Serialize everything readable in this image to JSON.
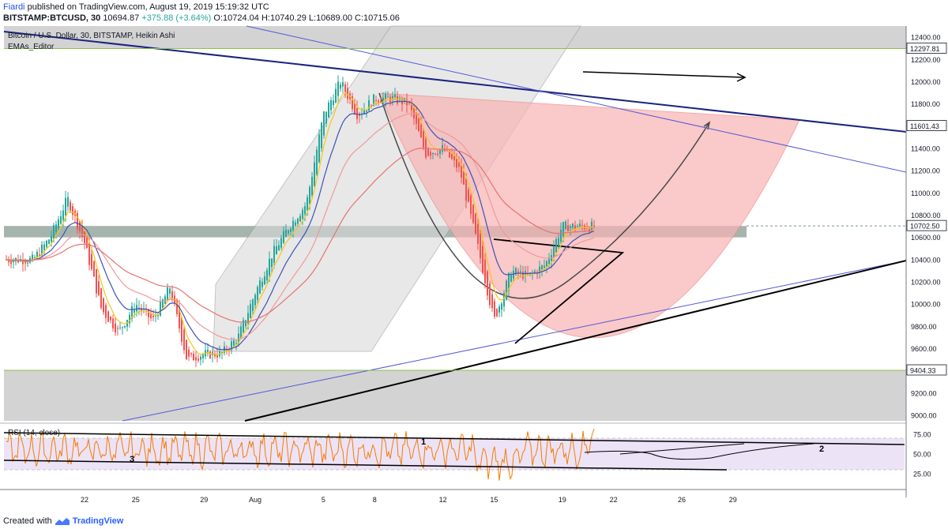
{
  "header": {
    "publisher": "Fiardi",
    "published_text": "published on TradingView.com, August 19, 2019 15:19:32 UTC",
    "symbol": "BITSTAMP:BTCUSD, 30",
    "last": "10694.87",
    "change": "+375.88 (+3.64%)",
    "ohlc": "O:10724.04  H:10740.29  L:10689.00  C:10715.06"
  },
  "chart_title": "Bitcoin / U.S. Dollar, 30, BITSTAMP, Heikin Ashi",
  "indicator_label": "EMAs_Editor",
  "rsi_label": "RSI (14, close)",
  "footer": {
    "created_with": "Created with",
    "brand": "TradingView"
  },
  "chart_data": [
    {
      "type": "candlestick",
      "title": "Bitcoin / U.S. Dollar, 30, BITSTAMP, Heikin Ashi",
      "x_tick_labels": [
        "22",
        "25",
        "29",
        "Aug",
        "5",
        "8",
        "12",
        "15",
        "19",
        "22",
        "26",
        "29"
      ],
      "ylim": [
        8950,
        12500
      ],
      "y_tick_labels": [
        9000,
        9200,
        9400,
        9600,
        9800,
        10000,
        10200,
        10400,
        10600,
        10800,
        11000,
        11200,
        11400,
        11600,
        11800,
        12000,
        12200,
        12400
      ],
      "price_labels": [
        "12297.81",
        "11601.43",
        "10702.50",
        "9404.33"
      ],
      "price_path": [
        {
          "x": "Jul 19",
          "y": 10400
        },
        {
          "x": "Jul 20",
          "y": 10600
        },
        {
          "x": "Jul 21",
          "y": 10950
        },
        {
          "x": "Jul 22",
          "y": 10550
        },
        {
          "x": "Jul 23",
          "y": 9950
        },
        {
          "x": "Jul 24",
          "y": 9750
        },
        {
          "x": "Jul 25",
          "y": 10000
        },
        {
          "x": "Jul 26",
          "y": 9850
        },
        {
          "x": "Jul 27",
          "y": 10150
        },
        {
          "x": "Jul 28",
          "y": 9500
        },
        {
          "x": "Jul 29",
          "y": 9550
        },
        {
          "x": "Jul 30",
          "y": 9550
        },
        {
          "x": "Jul 31",
          "y": 9700
        },
        {
          "x": "Aug 1",
          "y": 10100
        },
        {
          "x": "Aug 2",
          "y": 10450
        },
        {
          "x": "Aug 3",
          "y": 10700
        },
        {
          "x": "Aug 4",
          "y": 10900
        },
        {
          "x": "Aug 5",
          "y": 11700
        },
        {
          "x": "Aug 6",
          "y": 12000
        },
        {
          "x": "Aug 7",
          "y": 11700
        },
        {
          "x": "Aug 8",
          "y": 11850
        },
        {
          "x": "Aug 9",
          "y": 11850
        },
        {
          "x": "Aug 10",
          "y": 11800
        },
        {
          "x": "Aug 11",
          "y": 11350
        },
        {
          "x": "Aug 12",
          "y": 11400
        },
        {
          "x": "Aug 13",
          "y": 11200
        },
        {
          "x": "Aug 14",
          "y": 10550
        },
        {
          "x": "Aug 15",
          "y": 9850
        },
        {
          "x": "Aug 16",
          "y": 10300
        },
        {
          "x": "Aug 17",
          "y": 10250
        },
        {
          "x": "Aug 18",
          "y": 10350
        },
        {
          "x": "Aug 19",
          "y": 10700
        }
      ],
      "zones": [
        {
          "name": "top",
          "from": 12297.81,
          "to": 12500
        },
        {
          "name": "mid",
          "from": 10600,
          "to": 10702.5
        },
        {
          "name": "bottom",
          "from": 8950,
          "to": 9404.33
        }
      ]
    },
    {
      "type": "line",
      "title": "RSI (14, close)",
      "ylim": [
        10,
        85
      ],
      "y_tick_labels": [
        25,
        50,
        75
      ],
      "annotations": [
        "1",
        "2",
        "3"
      ]
    }
  ],
  "colors": {
    "up_candle": "#26a69a",
    "down_candle": "#ef5350",
    "rsi_line": "#f57c00",
    "rsi_band": "#e9dcf5",
    "cup_fill": "#f8b3b3",
    "channel_fill": "#d9d9d9",
    "zone_fill": "#c4c4c4",
    "mid_zone_fill": "#8fa39a",
    "trendline_blue": "#1a237e",
    "trendline_thin": "#5359d6",
    "axis_text": "#131722"
  }
}
